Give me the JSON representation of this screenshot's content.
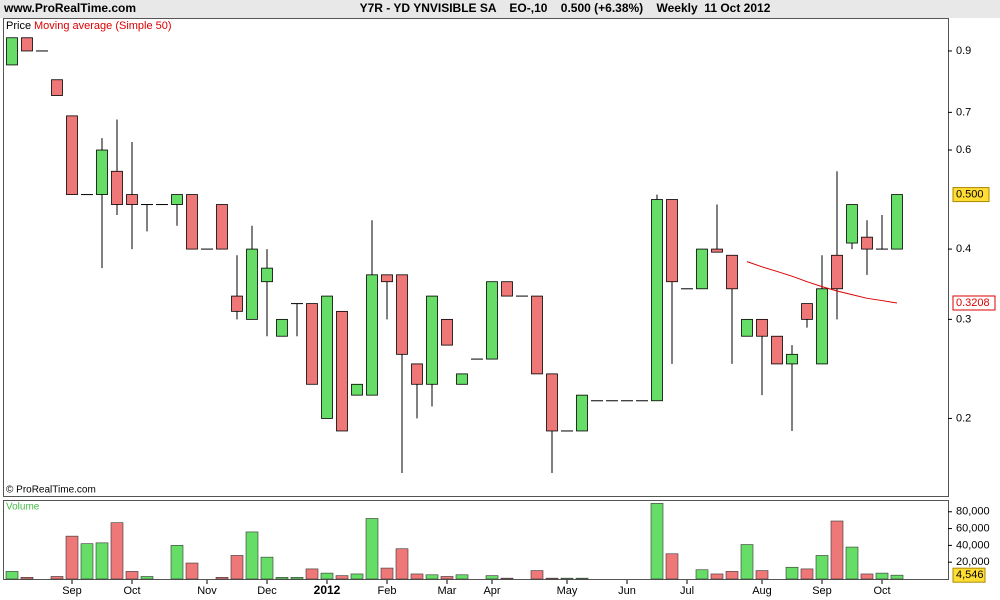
{
  "site": "www.ProRealTime.com",
  "copyright": "© ProRealTime.com",
  "chart_data": [
    {
      "type": "candlestick",
      "title": "Y7R - YD YNVISIBLE SA    EO-,10    0.500 (+6.38%)    Weekly  11 Oct 2012",
      "legend": [
        "Price",
        "Moving average (Simple 50)"
      ],
      "log_scale": true,
      "up_color": "#66dd66",
      "down_color": "#ee7777",
      "ylim": [
        0.145,
        1.03
      ],
      "yticks": [
        0.2,
        0.3,
        0.4,
        0.6,
        0.7,
        0.9
      ],
      "categories": [
        null,
        null,
        null,
        null,
        "Sep",
        null,
        null,
        null,
        "Oct",
        null,
        null,
        null,
        null,
        "Nov",
        null,
        null,
        null,
        "Dec",
        null,
        null,
        null,
        "2012",
        null,
        null,
        null,
        "Feb",
        null,
        null,
        null,
        "Mar",
        null,
        null,
        "Apr",
        null,
        null,
        null,
        null,
        "May",
        null,
        null,
        null,
        "Jun",
        null,
        null,
        null,
        "Jul",
        null,
        null,
        null,
        null,
        "Aug",
        null,
        null,
        null,
        "Sep",
        null,
        null,
        null,
        "Oct",
        null
      ],
      "open": [
        0.85,
        0.95,
        0.9,
        0.8,
        0.69,
        0.5,
        0.5,
        0.55,
        0.5,
        0.48,
        0.48,
        0.48,
        0.5,
        0.4,
        0.48,
        0.33,
        0.3,
        0.35,
        0.28,
        0.32,
        0.32,
        0.2,
        0.31,
        0.22,
        0.22,
        0.36,
        0.36,
        0.25,
        0.23,
        0.3,
        0.23,
        0.255,
        0.255,
        0.35,
        0.33,
        0.33,
        0.24,
        0.19,
        0.19,
        0.215,
        0.215,
        0.215,
        0.215,
        0.215,
        0.49,
        0.34,
        0.34,
        0.4,
        0.39,
        0.28,
        0.3,
        0.28,
        0.25,
        0.32,
        0.25,
        0.39,
        0.41,
        0.42,
        0.4,
        0.4
      ],
      "high": [
        0.95,
        0.95,
        0.9,
        0.8,
        0.69,
        0.5,
        0.63,
        0.68,
        0.62,
        0.48,
        0.48,
        0.5,
        0.5,
        0.4,
        0.48,
        0.39,
        0.44,
        0.4,
        0.3,
        0.32,
        0.32,
        0.33,
        0.31,
        0.23,
        0.45,
        0.36,
        0.36,
        0.25,
        0.33,
        0.3,
        0.24,
        0.255,
        0.35,
        0.35,
        0.33,
        0.33,
        0.24,
        0.19,
        0.22,
        0.215,
        0.215,
        0.215,
        0.215,
        0.5,
        0.49,
        0.34,
        0.4,
        0.48,
        0.39,
        0.3,
        0.3,
        0.28,
        0.27,
        0.32,
        0.39,
        0.55,
        0.48,
        0.45,
        0.46,
        0.5
      ],
      "low": [
        0.85,
        0.9,
        0.9,
        0.75,
        0.5,
        0.5,
        0.37,
        0.46,
        0.4,
        0.43,
        0.48,
        0.44,
        0.4,
        0.4,
        0.4,
        0.3,
        0.3,
        0.28,
        0.28,
        0.28,
        0.23,
        0.2,
        0.19,
        0.22,
        0.22,
        0.3,
        0.16,
        0.2,
        0.21,
        0.27,
        0.23,
        0.255,
        0.255,
        0.33,
        0.33,
        0.24,
        0.16,
        0.19,
        0.19,
        0.215,
        0.215,
        0.215,
        0.215,
        0.215,
        0.25,
        0.34,
        0.34,
        0.395,
        0.25,
        0.28,
        0.22,
        0.25,
        0.19,
        0.29,
        0.25,
        0.3,
        0.4,
        0.36,
        0.4,
        0.4
      ],
      "close": [
        0.95,
        0.9,
        0.9,
        0.75,
        0.5,
        0.5,
        0.6,
        0.48,
        0.48,
        0.48,
        0.48,
        0.5,
        0.4,
        0.4,
        0.4,
        0.31,
        0.4,
        0.37,
        0.3,
        0.32,
        0.23,
        0.33,
        0.19,
        0.23,
        0.36,
        0.35,
        0.26,
        0.23,
        0.33,
        0.27,
        0.24,
        0.255,
        0.35,
        0.33,
        0.33,
        0.24,
        0.19,
        0.19,
        0.22,
        0.215,
        0.215,
        0.215,
        0.215,
        0.49,
        0.35,
        0.34,
        0.4,
        0.395,
        0.34,
        0.3,
        0.28,
        0.25,
        0.26,
        0.3,
        0.34,
        0.34,
        0.48,
        0.4,
        0.4,
        0.5
      ],
      "close_labels": [
        null,
        null,
        null,
        null,
        null,
        null,
        null,
        null,
        null,
        null,
        null,
        null,
        null,
        null,
        null,
        null,
        null,
        null,
        null,
        null,
        null,
        null,
        null,
        null,
        null,
        null,
        null,
        null,
        null,
        null,
        null,
        null,
        null,
        null,
        null,
        null,
        null,
        null,
        null,
        null,
        null,
        null,
        null,
        null,
        null,
        null,
        null,
        null,
        null,
        null,
        null,
        null,
        null,
        null,
        null,
        null,
        null,
        null,
        null,
        "0.500"
      ],
      "series": [
        {
          "name": "Moving average (Simple 50)",
          "color": "#dd0000",
          "values": [
            null,
            null,
            null,
            null,
            null,
            null,
            null,
            null,
            null,
            null,
            null,
            null,
            null,
            null,
            null,
            null,
            null,
            null,
            null,
            null,
            null,
            null,
            null,
            null,
            null,
            null,
            null,
            null,
            null,
            null,
            null,
            null,
            null,
            null,
            null,
            null,
            null,
            null,
            null,
            null,
            null,
            null,
            null,
            null,
            null,
            null,
            null,
            null,
            null,
            0.38,
            0.372,
            0.365,
            0.358,
            0.35,
            0.343,
            0.337,
            0.332,
            0.327,
            0.324,
            0.3208
          ],
          "value_labels": [
            null,
            null,
            null,
            null,
            null,
            null,
            null,
            null,
            null,
            null,
            null,
            null,
            null,
            null,
            null,
            null,
            null,
            null,
            null,
            null,
            null,
            null,
            null,
            null,
            null,
            null,
            null,
            null,
            null,
            null,
            null,
            null,
            null,
            null,
            null,
            null,
            null,
            null,
            null,
            null,
            null,
            null,
            null,
            null,
            null,
            null,
            null,
            null,
            null,
            null,
            null,
            null,
            null,
            null,
            null,
            null,
            null,
            null,
            null,
            "0.3208"
          ]
        }
      ]
    },
    {
      "type": "bar",
      "title": "Volume",
      "ylim": [
        0,
        94000
      ],
      "yticks": [
        {
          "value": 20000,
          "label": "20,000"
        },
        {
          "value": 40000,
          "label": "40,000"
        },
        {
          "value": 60000,
          "label": "60,000"
        },
        {
          "value": 80000,
          "label": "80,000"
        }
      ],
      "values": [
        9000,
        2000,
        0,
        3000,
        51000,
        42000,
        43000,
        67000,
        9000,
        3000,
        0,
        40000,
        19000,
        0,
        2000,
        28000,
        56000,
        26000,
        2000,
        2000,
        12000,
        7000,
        4000,
        6000,
        72000,
        13000,
        36000,
        6000,
        5000,
        3000,
        5000,
        0,
        4000,
        1000,
        0,
        10000,
        1000,
        1000,
        1000,
        0,
        0,
        0,
        0,
        90000,
        30000,
        0,
        11000,
        6000,
        9000,
        41000,
        10000,
        0,
        14000,
        12000,
        28000,
        69000,
        38000,
        6000,
        7000,
        4546
      ],
      "value_labels": [
        null,
        null,
        null,
        null,
        null,
        null,
        null,
        null,
        null,
        null,
        null,
        null,
        null,
        null,
        null,
        null,
        null,
        null,
        null,
        null,
        null,
        null,
        null,
        null,
        null,
        null,
        null,
        null,
        null,
        null,
        null,
        null,
        null,
        null,
        null,
        null,
        null,
        null,
        null,
        null,
        null,
        null,
        null,
        null,
        null,
        null,
        null,
        null,
        null,
        null,
        null,
        null,
        null,
        null,
        null,
        null,
        null,
        null,
        null,
        "4,546"
      ]
    }
  ]
}
